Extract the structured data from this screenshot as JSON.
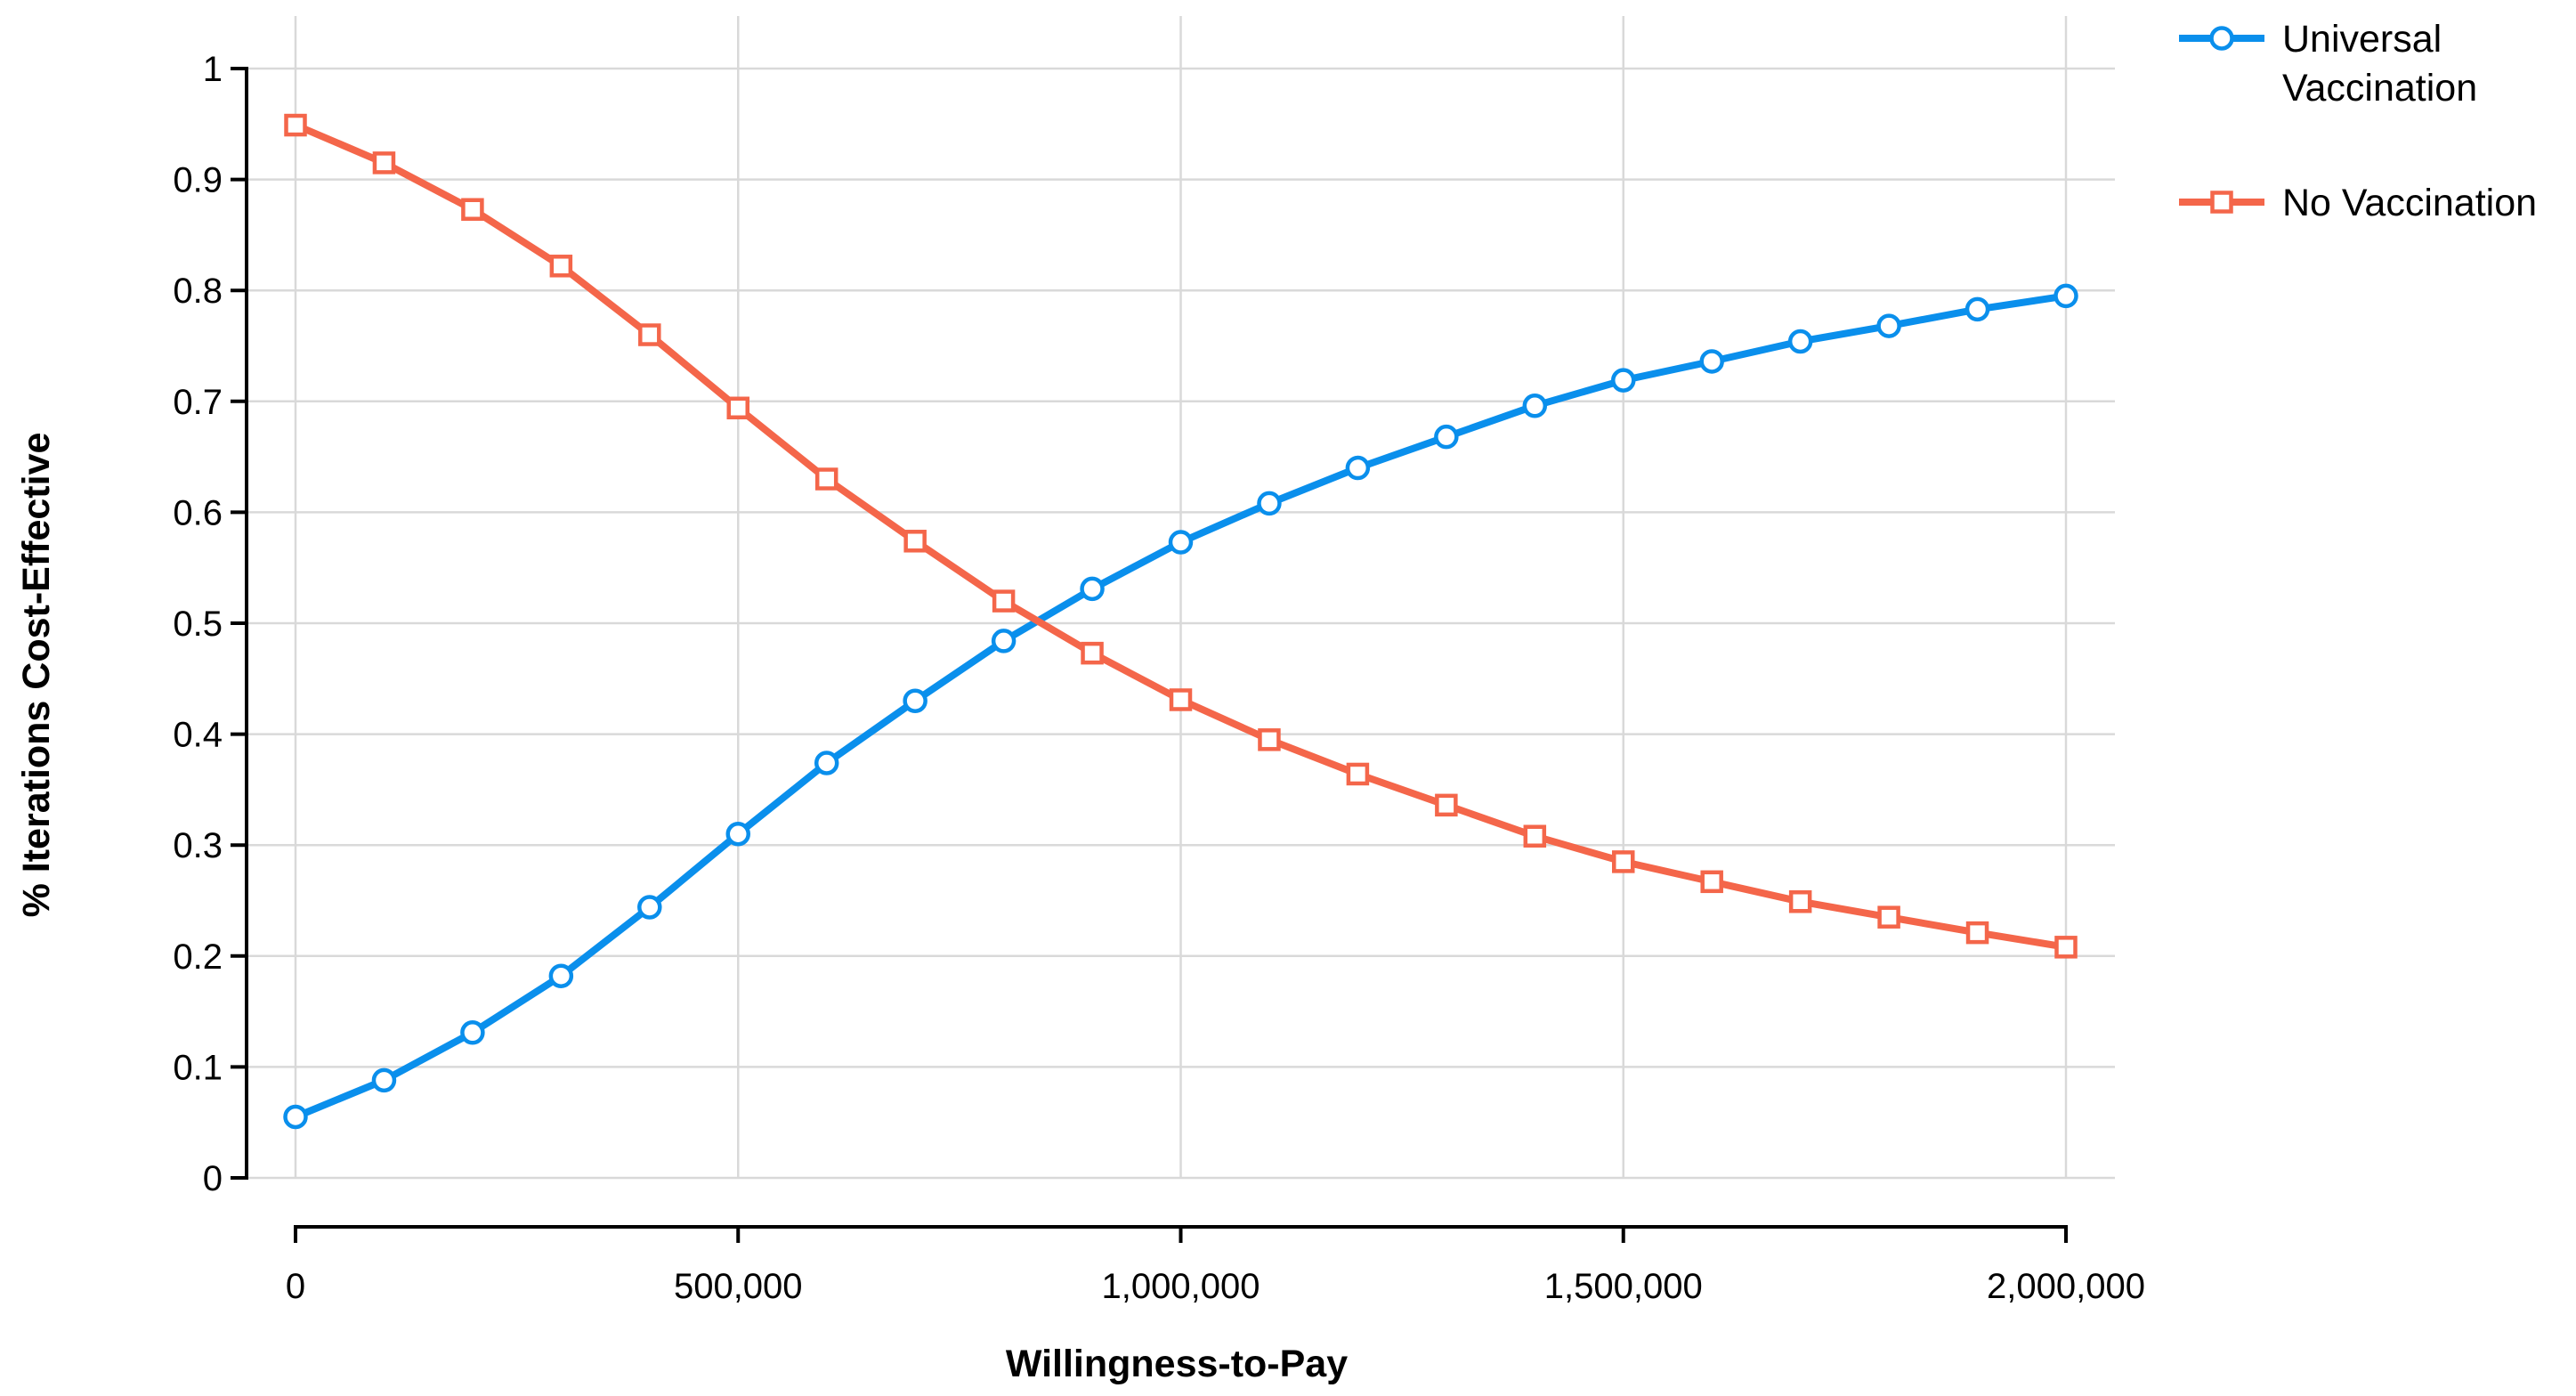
{
  "chart_data": {
    "type": "line",
    "xlabel": "Willingness-to-Pay",
    "ylabel": "% Iterations Cost-Effective",
    "xlim": [
      0,
      2000000
    ],
    "ylim": [
      0,
      1
    ],
    "x_ticks": [
      0,
      500000,
      1000000,
      1500000,
      2000000
    ],
    "x_tick_labels": [
      "0",
      "500,000",
      "1,000,000",
      "1,500,000",
      "2,000,000"
    ],
    "y_ticks": [
      0,
      0.1,
      0.2,
      0.3,
      0.4,
      0.5,
      0.6,
      0.7,
      0.8,
      0.9,
      1
    ],
    "y_tick_labels": [
      "0",
      "0.1",
      "0.2",
      "0.3",
      "0.4",
      "0.5",
      "0.6",
      "0.7",
      "0.8",
      "0.9",
      "1"
    ],
    "grid": true,
    "legend_position": "top-right",
    "x": [
      0,
      100000,
      200000,
      300000,
      400000,
      500000,
      600000,
      700000,
      800000,
      900000,
      1000000,
      1100000,
      1200000,
      1300000,
      1400000,
      1500000,
      1600000,
      1700000,
      1800000,
      1900000,
      2000000
    ],
    "series": [
      {
        "name": "Universal Vaccination",
        "legend_lines": [
          "Universal",
          "Vaccination"
        ],
        "color": "#0a8fec",
        "marker": "circle",
        "values": [
          0.055,
          0.088,
          0.131,
          0.182,
          0.244,
          0.31,
          0.374,
          0.43,
          0.484,
          0.531,
          0.573,
          0.608,
          0.64,
          0.668,
          0.696,
          0.719,
          0.736,
          0.754,
          0.768,
          0.783,
          0.795
        ]
      },
      {
        "name": "No Vaccination",
        "legend_lines": [
          "No Vaccination"
        ],
        "color": "#f4664a",
        "marker": "square",
        "values": [
          0.949,
          0.915,
          0.873,
          0.822,
          0.76,
          0.694,
          0.63,
          0.574,
          0.52,
          0.473,
          0.431,
          0.395,
          0.364,
          0.336,
          0.308,
          0.285,
          0.267,
          0.249,
          0.235,
          0.221,
          0.208
        ]
      }
    ]
  }
}
